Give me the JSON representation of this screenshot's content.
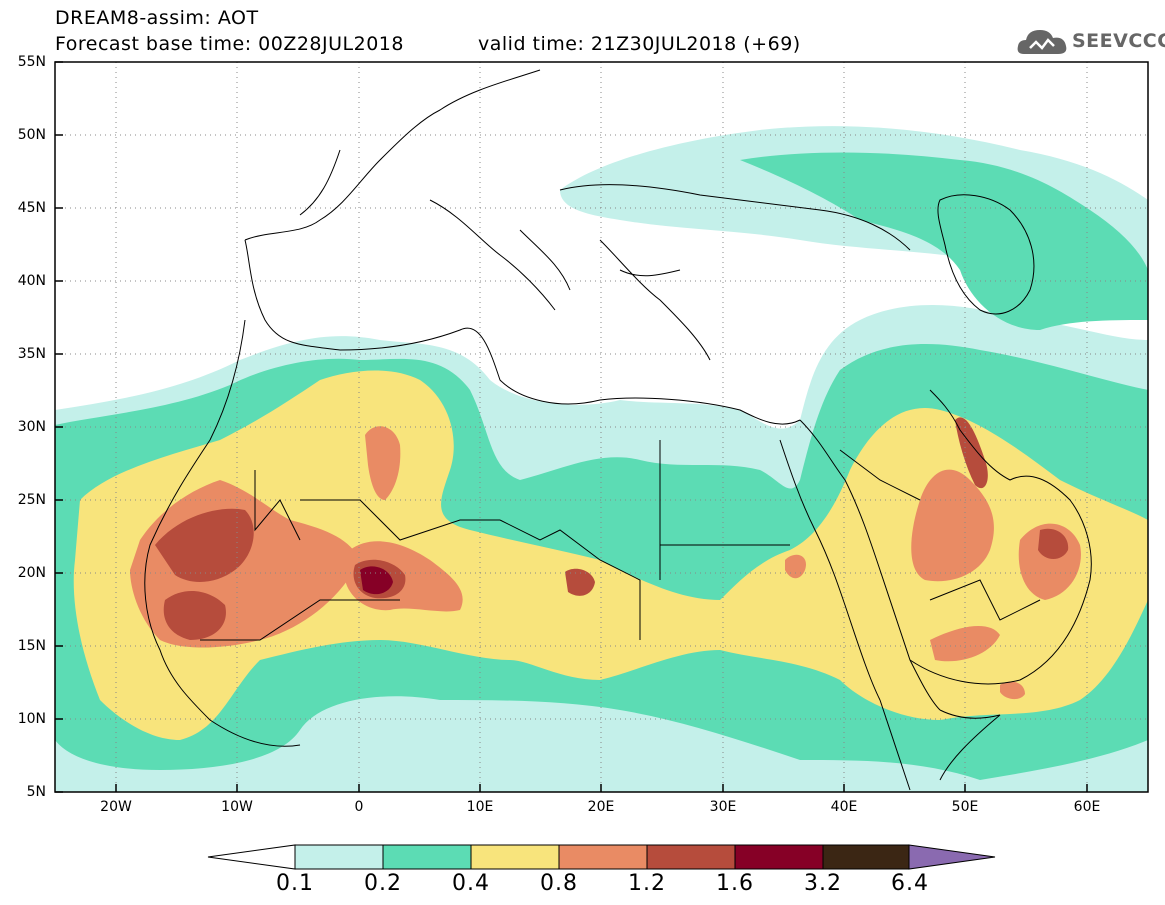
{
  "header": {
    "title": "DREAM8-assim: AOT",
    "base_time": "Forecast base time: 00Z28JUL2018",
    "valid_time": "valid time: 21Z30JUL2018 (+69)"
  },
  "logo": {
    "text": "SEEVCCC",
    "icon": "cloud-icon"
  },
  "map": {
    "variable": "AOT",
    "lat_labels": [
      "55N",
      "50N",
      "45N",
      "40N",
      "35N",
      "30N",
      "25N",
      "20N",
      "15N",
      "10N",
      "5N"
    ],
    "lon_labels": [
      "20W",
      "10W",
      "0",
      "10E",
      "20E",
      "30E",
      "40E",
      "50E",
      "60E"
    ]
  },
  "colorbar": {
    "labels": [
      "0.1",
      "0.2",
      "0.4",
      "0.8",
      "1.2",
      "1.6",
      "3.2",
      "6.4"
    ],
    "colors": [
      "#ffffff",
      "#c4f0ea",
      "#5cdcb4",
      "#f8e47c",
      "#e98b64",
      "#b64c3c",
      "#860026",
      "#3b2614",
      "#8a6ab0"
    ]
  }
}
